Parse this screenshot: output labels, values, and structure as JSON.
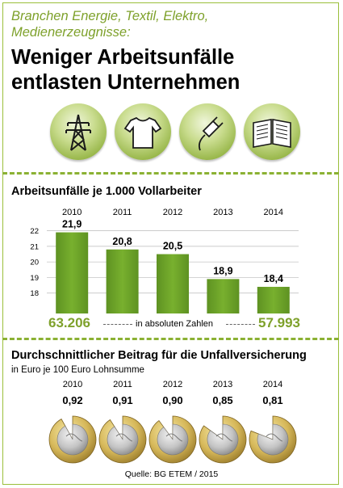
{
  "header": {
    "subtitle_line1": "Branchen Energie, Textil, Elektro,",
    "subtitle_line2": "Medienerzeugnisse:",
    "title_line1": "Weniger Arbeitsunfälle",
    "title_line2": "entlasten Unternehmen"
  },
  "icons": [
    "power-pylon-icon",
    "t-shirt-icon",
    "electric-plug-icon",
    "open-book-icon"
  ],
  "colors": {
    "accent": "#8bb133",
    "bar": "#6fa32a",
    "text_green": "#7ea12b"
  },
  "chart_data": [
    {
      "type": "bar",
      "title": "Arbeitsunfälle je 1.000 Vollarbeiter",
      "categories": [
        "2010",
        "2011",
        "2012",
        "2013",
        "2014"
      ],
      "values": [
        21.9,
        20.8,
        20.5,
        18.9,
        18.4
      ],
      "value_labels": [
        "21,9",
        "20,8",
        "20,5",
        "18,9",
        "18,4"
      ],
      "yticks": [
        "22",
        "21",
        "20",
        "19",
        "18"
      ],
      "ylim": [
        17,
        22.5
      ],
      "grid": true,
      "totals": {
        "first": "63.206",
        "last": "57.993",
        "label": "in absoluten Zahlen"
      }
    },
    {
      "type": "table",
      "title": "Durchschnittlicher Beitrag für die Unfallversicherung",
      "subtitle": "in Euro je 100 Euro Lohnsumme",
      "categories": [
        "2010",
        "2011",
        "2012",
        "2013",
        "2014"
      ],
      "values": [
        0.92,
        0.91,
        0.9,
        0.85,
        0.81
      ],
      "value_labels": [
        "0,92",
        "0,91",
        "0,90",
        "0,85",
        "0,81"
      ]
    }
  ],
  "source": "Quelle: BG ETEM / 2015"
}
